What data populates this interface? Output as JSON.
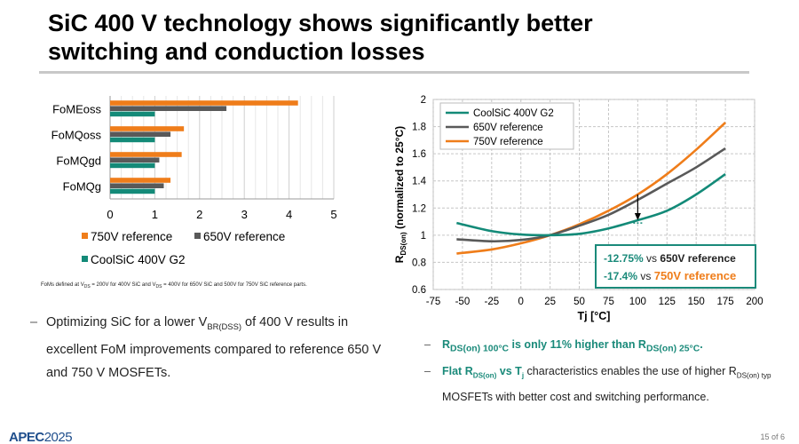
{
  "slide": {
    "title_line1": "SiC 400 V technology shows significantly better",
    "title_line2": "switching and conduction losses",
    "footnote": "FoMs defined at V_DS = 200V for 400V SiC and V_DS = 400V for 650V SiC and 500V for 750V SiC reference parts.",
    "bullet_left": "Optimizing SiC for a lower V_BR(DSS) of 400 V results in excellent FoM improvements compared to reference 650 V and 750 V MOSFETs.",
    "bullet_right_1": "R_DS(on) 100°C is only 11% higher than R_DS(on) 25°C.",
    "bullet_right_2": "Flat R_DS(on) vs T_j characteristics enables the use of higher R_DS(on) typ MOSFETs with better cost and switching performance.",
    "logo_text": "APEC",
    "logo_year": "2025",
    "page": "15 of 6"
  },
  "callout": {
    "line1_value": "-12.75%",
    "line1_vs": "vs",
    "line1_ref": "650V reference",
    "line2_value": "-17.4%",
    "line2_vs": "vs",
    "line2_ref": "750V reference"
  },
  "colors": {
    "sic400": "#138a78",
    "ref650": "#595959",
    "ref750": "#ef7d1a",
    "teal_text": "#1a8a7a"
  },
  "chart_data": [
    {
      "type": "bar",
      "orientation": "horizontal",
      "categories": [
        "FoMEoss",
        "FoMQoss",
        "FoMQgd",
        "FoMQg"
      ],
      "series": [
        {
          "name": "750V reference",
          "values": [
            4.2,
            1.65,
            1.6,
            1.35
          ]
        },
        {
          "name": "650V reference",
          "values": [
            2.6,
            1.35,
            1.1,
            1.2
          ]
        },
        {
          "name": "CoolSiC 400V G2",
          "values": [
            1.0,
            1.0,
            1.0,
            1.0
          ]
        }
      ],
      "xlim": [
        0,
        5
      ],
      "xticks": [
        "0",
        "1",
        "2",
        "3",
        "4",
        "5"
      ],
      "grid": true,
      "legend": "bottom"
    },
    {
      "type": "line",
      "xlabel": "Tj [°C]",
      "ylabel": "R_DS(on) (normalized to 25°C)",
      "xlim": [
        -75,
        200
      ],
      "ylim": [
        0.6,
        2.0
      ],
      "xticks": [
        "-75",
        "-50",
        "-25",
        "0",
        "25",
        "50",
        "75",
        "100",
        "125",
        "150",
        "175",
        "200"
      ],
      "yticks": [
        "0.6",
        "0.8",
        "1",
        "1.2",
        "1.4",
        "1.6",
        "1.8",
        "2"
      ],
      "grid": true,
      "legend": "top-left",
      "series": [
        {
          "name": "CoolSiC 400V G2",
          "x": [
            -55,
            -25,
            0,
            25,
            50,
            75,
            100,
            125,
            150,
            175
          ],
          "y": [
            1.09,
            1.03,
            1.005,
            1.0,
            1.01,
            1.05,
            1.11,
            1.18,
            1.3,
            1.45
          ]
        },
        {
          "name": "650V reference",
          "x": [
            -55,
            -25,
            0,
            25,
            50,
            75,
            100,
            125,
            150,
            175
          ],
          "y": [
            0.97,
            0.955,
            0.965,
            1.0,
            1.07,
            1.15,
            1.26,
            1.38,
            1.5,
            1.64
          ]
        },
        {
          "name": "750V reference",
          "x": [
            -55,
            -25,
            0,
            25,
            50,
            75,
            100,
            125,
            150,
            175
          ],
          "y": [
            0.865,
            0.895,
            0.94,
            1.0,
            1.08,
            1.18,
            1.3,
            1.45,
            1.63,
            1.83
          ]
        }
      ]
    }
  ]
}
